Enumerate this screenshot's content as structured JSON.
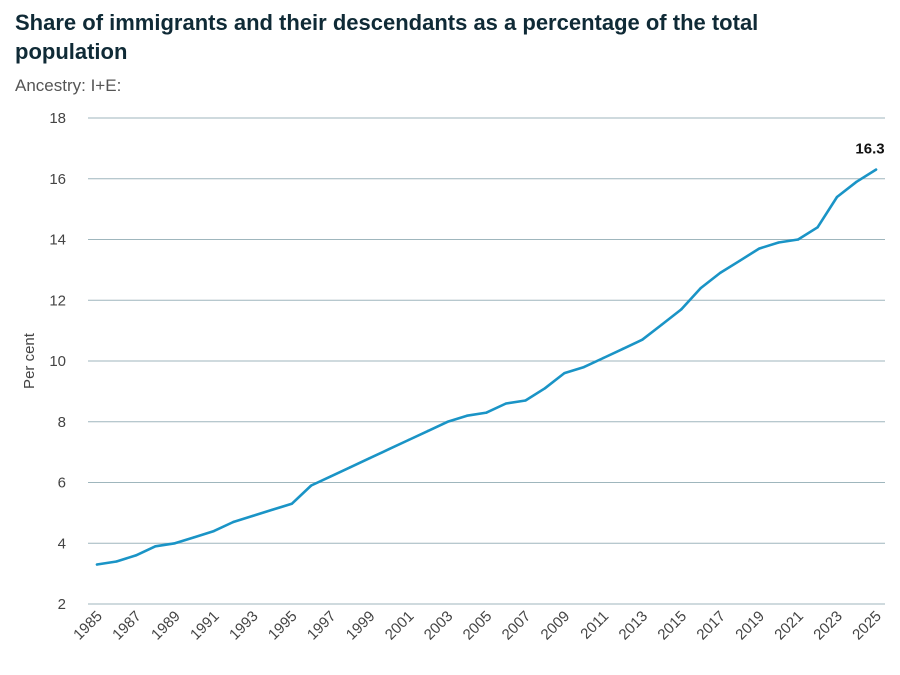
{
  "chart_data": {
    "type": "line",
    "title": "Share of immigrants and their descendants as a percentage of the total population",
    "subtitle": "Ancestry: I+E:",
    "xlabel": "",
    "ylabel": "Per cent",
    "ylim": [
      2,
      18
    ],
    "yticks": [
      2,
      4,
      6,
      8,
      10,
      12,
      14,
      16,
      18
    ],
    "xticks": [
      1985,
      1987,
      1989,
      1991,
      1993,
      1995,
      1997,
      1999,
      2001,
      2003,
      2005,
      2007,
      2009,
      2011,
      2013,
      2015,
      2017,
      2019,
      2021,
      2023,
      2025
    ],
    "grid": true,
    "line_color": "#1a94c6",
    "series": [
      {
        "x": [
          1985,
          1986,
          1987,
          1988,
          1989,
          1990,
          1991,
          1992,
          1993,
          1994,
          1995,
          1996,
          1997,
          1998,
          1999,
          2000,
          2001,
          2002,
          2003,
          2004,
          2005,
          2006,
          2007,
          2008,
          2009,
          2010,
          2011,
          2012,
          2013,
          2014,
          2015,
          2016,
          2017,
          2018,
          2019,
          2020,
          2021,
          2022,
          2023,
          2024,
          2025
        ],
        "values": [
          3.3,
          3.4,
          3.6,
          3.9,
          4.0,
          4.2,
          4.4,
          4.7,
          4.9,
          5.1,
          5.3,
          5.9,
          6.2,
          6.5,
          6.8,
          7.1,
          7.4,
          7.7,
          8.0,
          8.2,
          8.3,
          8.6,
          8.7,
          9.1,
          9.6,
          9.8,
          10.1,
          10.4,
          10.7,
          11.2,
          11.7,
          12.4,
          12.9,
          13.3,
          13.7,
          13.9,
          14.0,
          14.4,
          15.4,
          15.9,
          16.3
        ]
      }
    ],
    "annotations": [
      {
        "x": 2025,
        "y": 16.3,
        "text": "16.3"
      }
    ]
  }
}
